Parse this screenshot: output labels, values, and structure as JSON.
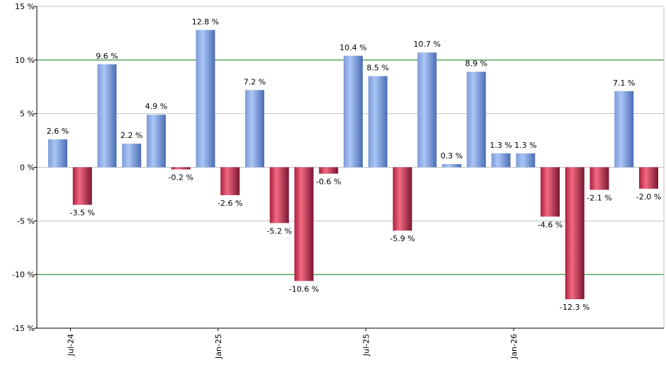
{
  "chart_data": {
    "type": "bar",
    "y_tick_labels": [
      "15 %",
      "10 %",
      "5 %",
      "0 %",
      "-5 %",
      "-10 %",
      "-15 %"
    ],
    "y_ticks": [
      15,
      10,
      5,
      0,
      -5,
      -10,
      -15
    ],
    "ylim": [
      -15,
      15
    ],
    "highlight_gridlines": [
      10,
      -10
    ],
    "x_tick_labels": [
      "Jul-24",
      "Jan-25",
      "Jul-25",
      "Jan-26"
    ],
    "x_tick_months": [
      1,
      7,
      13,
      19
    ],
    "values": [
      2.6,
      -3.5,
      9.6,
      2.2,
      4.9,
      -0.2,
      12.8,
      -2.6,
      7.2,
      -5.2,
      -10.6,
      -0.6,
      10.4,
      8.5,
      -5.9,
      10.7,
      0.3,
      8.9,
      1.3,
      1.3,
      -4.6,
      -12.3,
      -2.1,
      7.1,
      -2.0
    ],
    "value_labels": [
      "2.6 %",
      "-3.5 %",
      "9.6 %",
      "2.2 %",
      "4.9 %",
      "-0.2 %",
      "12.8 %",
      "-2.6 %",
      "7.2 %",
      "-5.2 %",
      "-10.6 %",
      "-0.6 %",
      "10.4 %",
      "8.5 %",
      "-5.9 %",
      "10.7 %",
      "0.3 %",
      "8.9 %",
      "1.3 %",
      "1.3 %",
      "-4.6 %",
      "-12.3 %",
      "-2.1 %",
      "7.1 %",
      "-2.0 %"
    ],
    "colors": {
      "positive_light": "#a9c4f5",
      "positive_dark": "#4b6fb8",
      "negative_light": "#f0607a",
      "negative_dark": "#7a1630",
      "grid": "#c0c0c0",
      "highlight_grid": "#0a7a0a",
      "axis": "#000000"
    }
  }
}
